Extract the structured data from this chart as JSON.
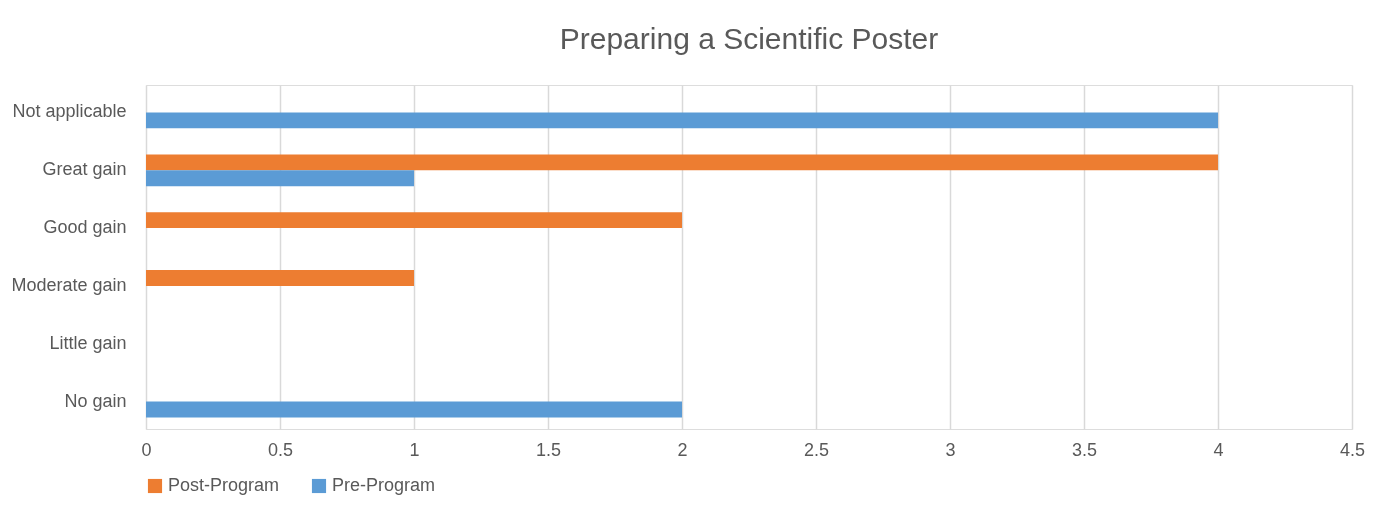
{
  "chart_data": {
    "type": "bar",
    "orientation": "horizontal",
    "title": "Preparing a Scientific Poster",
    "categories": [
      "Not applicable",
      "Great gain",
      "Good gain",
      "Moderate gain",
      "Little gain",
      "No gain"
    ],
    "series": [
      {
        "name": "Post-Program",
        "color": "#ed7d31",
        "values": [
          0,
          4,
          2,
          1,
          0,
          0
        ]
      },
      {
        "name": "Pre-Program",
        "color": "#5b9bd5",
        "values": [
          4,
          1,
          0,
          0,
          0,
          2
        ]
      }
    ],
    "xlim": [
      0,
      4.5
    ],
    "xticks": [
      0,
      0.5,
      1,
      1.5,
      2,
      2.5,
      3,
      3.5,
      4,
      4.5
    ],
    "grid": "x",
    "legend": "bottom"
  }
}
